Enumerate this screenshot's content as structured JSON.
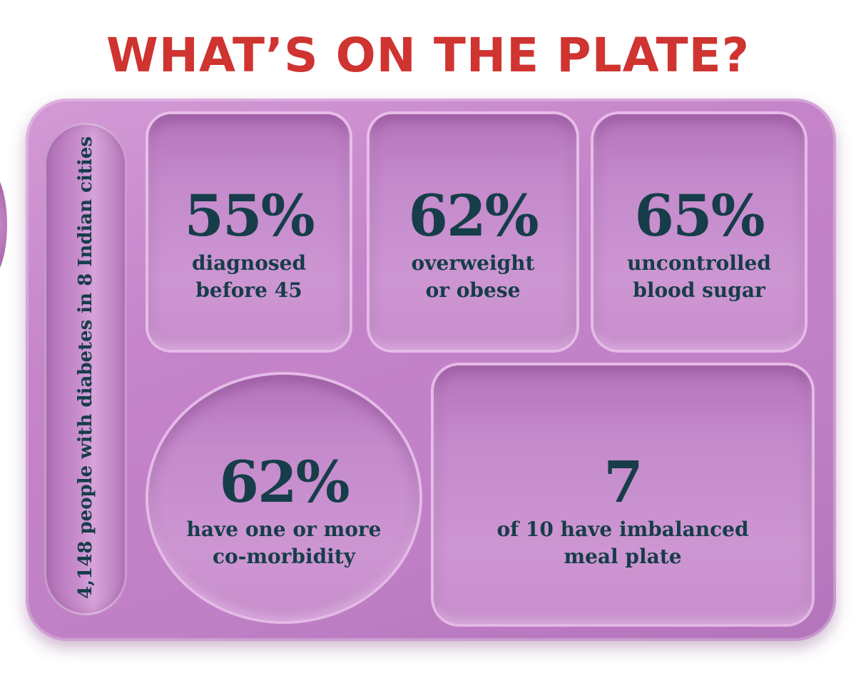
{
  "title": "WHAT’S ON THE PLATE?",
  "side_label": "4,148 people with diabetes in 8 Indian cities",
  "colors": {
    "title": "#cf3430",
    "tray": "#c584c9",
    "text": "#163d49"
  },
  "stats": [
    {
      "value": "55%",
      "line1": "diagnosed",
      "line2": "before 45"
    },
    {
      "value": "62%",
      "line1": "overweight",
      "line2": "or obese"
    },
    {
      "value": "65%",
      "line1": "uncontrolled",
      "line2": "blood sugar"
    },
    {
      "value": "62%",
      "line1": "have one or more",
      "line2": "co-morbidity"
    },
    {
      "value": "7",
      "line1": "of 10 have imbalanced",
      "line2": "meal plate"
    }
  ]
}
